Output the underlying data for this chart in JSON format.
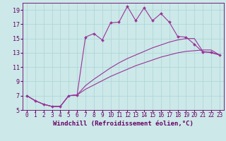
{
  "xlabel": "Windchill (Refroidissement éolien,°C)",
  "bg_color": "#cce8e8",
  "line_color": "#993399",
  "grid_color": "#aad4d4",
  "xlim": [
    -0.5,
    23.5
  ],
  "ylim": [
    5,
    20
  ],
  "xticks": [
    0,
    1,
    2,
    3,
    4,
    5,
    6,
    7,
    8,
    9,
    10,
    11,
    12,
    13,
    14,
    15,
    16,
    17,
    18,
    19,
    20,
    21,
    22,
    23
  ],
  "yticks": [
    5,
    7,
    9,
    11,
    13,
    15,
    17,
    19
  ],
  "line1_x": [
    0,
    1,
    2,
    3,
    4,
    5,
    6,
    7,
    8,
    9,
    10,
    11,
    12,
    13,
    14,
    15,
    16,
    17,
    18,
    19,
    20,
    21,
    22,
    23
  ],
  "line1_y": [
    7.0,
    6.3,
    5.8,
    5.5,
    5.5,
    7.0,
    7.1,
    15.2,
    15.7,
    14.8,
    17.2,
    17.3,
    19.5,
    17.5,
    19.3,
    17.5,
    18.5,
    17.3,
    15.3,
    15.2,
    14.2,
    13.1,
    13.1,
    12.7
  ],
  "line2_x": [
    0,
    1,
    2,
    3,
    4,
    5,
    6,
    7,
    8,
    9,
    10,
    11,
    12,
    13,
    14,
    15,
    16,
    17,
    18,
    19,
    20,
    21,
    22,
    23
  ],
  "line2_y": [
    7.0,
    6.3,
    5.8,
    5.5,
    5.5,
    7.0,
    7.1,
    7.9,
    8.5,
    9.1,
    9.7,
    10.2,
    10.7,
    11.2,
    11.6,
    12.0,
    12.4,
    12.7,
    13.0,
    13.2,
    13.3,
    13.4,
    13.4,
    12.7
  ],
  "line3_x": [
    0,
    1,
    2,
    3,
    4,
    5,
    6,
    7,
    8,
    9,
    10,
    11,
    12,
    13,
    14,
    15,
    16,
    17,
    18,
    19,
    20,
    21,
    22,
    23
  ],
  "line3_y": [
    7.0,
    6.3,
    5.8,
    5.5,
    5.5,
    7.0,
    7.1,
    8.4,
    9.3,
    10.1,
    10.9,
    11.6,
    12.2,
    12.7,
    13.2,
    13.7,
    14.1,
    14.5,
    14.8,
    15.0,
    15.0,
    13.2,
    13.0,
    12.7
  ],
  "font_color": "#660066",
  "tick_fontsize": 5.5,
  "label_fontsize": 6.5
}
